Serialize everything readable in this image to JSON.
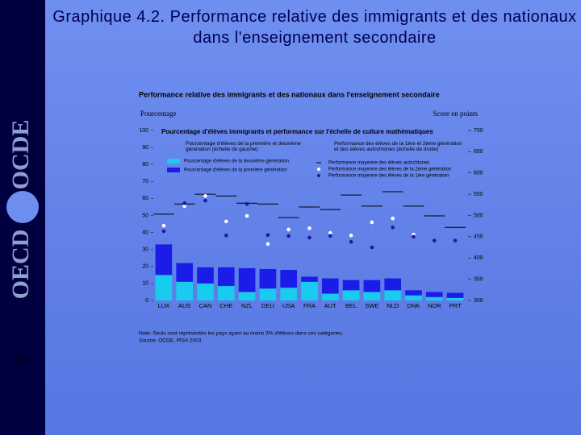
{
  "slide": {
    "title": "Graphique 4.2. Performance relative des immigrants et des nationaux dans l'enseignement secondaire",
    "page_number": "21",
    "logo_left": "OECD",
    "logo_right": "OCDE"
  },
  "chart_data": {
    "type": "bar",
    "stacked": true,
    "title": "Performance relative des immigrants et des nationaux dans l'enseignement secondaire",
    "subtitle": "Pourcentage d'élèves immigrants et performance sur l'échelle de culture mathématiques",
    "y_label": "Pourcentage",
    "y2_label": "Score en points",
    "legend_groups": [
      "Pourcentage d'élèves de la première et deuxième génération (échelle de gauche)",
      "Performance des élèves de la 1ère et 2ème génération et des élèves autochtones (échelle de droite)"
    ],
    "note": "Note: Seuls sont représentés les pays ayant au moins 3% d'élèves dans ces catégories.",
    "source": "Source: OCDE, PISA 2003.",
    "categories": [
      "LUX",
      "AUS",
      "CAN",
      "CHE",
      "NZL",
      "DEU",
      "USA",
      "FRA",
      "AUT",
      "BEL",
      "SWE",
      "NLD",
      "DNK",
      "NOR",
      "PRT"
    ],
    "ylim": [
      0,
      100
    ],
    "yticks": [
      0,
      10,
      20,
      30,
      40,
      50,
      60,
      70,
      80,
      90,
      100
    ],
    "y2lim": [
      300,
      700
    ],
    "y2ticks": [
      300,
      350,
      400,
      450,
      500,
      550,
      600,
      650,
      700
    ],
    "series": [
      {
        "name": "Pourcentage d'élèves de la deuxième génération",
        "type": "bar",
        "color": "#19cbee",
        "values": [
          15,
          11,
          10,
          8.5,
          5,
          7,
          7.5,
          11,
          4,
          6,
          5,
          6,
          3,
          2,
          1.5
        ]
      },
      {
        "name": "Pourcentage d'élèves de la première génération",
        "type": "bar",
        "color": "#1c1ce8",
        "values": [
          18,
          11,
          9.5,
          11,
          14,
          11.5,
          10.5,
          3,
          9,
          6,
          7,
          7,
          3,
          3,
          3
        ]
      },
      {
        "name": "Performance moyenne des élèves autochtones",
        "type": "scatter",
        "marker": "hline",
        "axis": "y2",
        "color": "#000000",
        "values": [
          503,
          527,
          550,
          546,
          529,
          527,
          495,
          520,
          514,
          548,
          522,
          556,
          522,
          499,
          472
        ]
      },
      {
        "name": "Performance moyenne des élèves de la 2ème génération",
        "type": "scatter",
        "marker": "circle",
        "axis": "y2",
        "color": "#ffffff",
        "values": [
          476,
          522,
          546,
          486,
          499,
          433,
          467,
          470,
          459,
          453,
          484,
          493,
          455,
          null,
          null
        ]
      },
      {
        "name": "Performance moyenne des élèves de la 1ère génération",
        "type": "scatter",
        "marker": "circle",
        "axis": "y2",
        "color": "#1a1a9e",
        "values": [
          463,
          529,
          535,
          453,
          527,
          454,
          452,
          448,
          452,
          438,
          425,
          472,
          450,
          441,
          441
        ]
      }
    ]
  }
}
